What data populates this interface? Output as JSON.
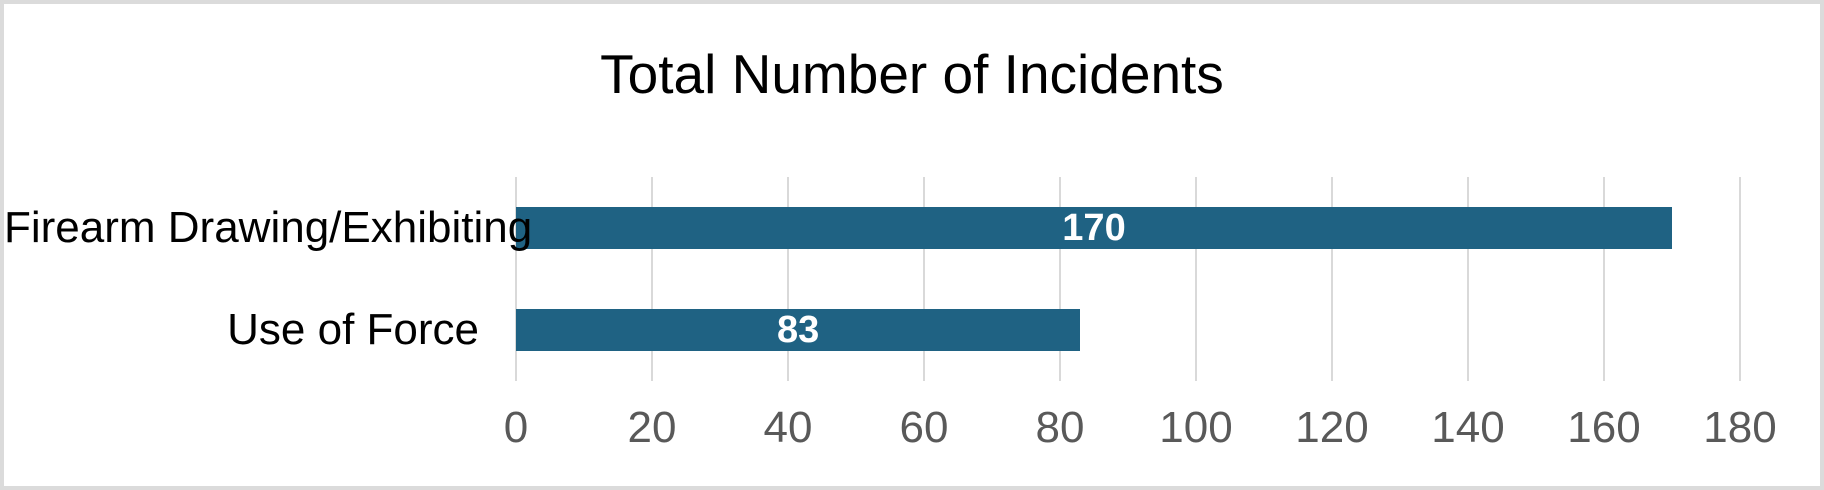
{
  "chart_data": {
    "type": "bar",
    "orientation": "horizontal",
    "title": "Total Number of Incidents",
    "categories": [
      "Firearm Drawing/Exhibiting",
      "Use of Force"
    ],
    "values": [
      170,
      83
    ],
    "data_labels": [
      "170",
      "83"
    ],
    "xlabel": "",
    "ylabel": "",
    "xlim": [
      0,
      180
    ],
    "xticks": [
      0,
      20,
      40,
      60,
      80,
      100,
      120,
      140,
      160,
      180
    ],
    "grid": "vertical-gridlines-on",
    "legend": "none",
    "colors": {
      "bar_fill": "#1f6283",
      "gridline": "#d9d9d9",
      "tick_label": "#595959",
      "title_text": "#000000",
      "category_text": "#000000",
      "data_label_text": "#ffffff",
      "canvas_border": "#dbdbdb",
      "background": "#ffffff"
    }
  }
}
